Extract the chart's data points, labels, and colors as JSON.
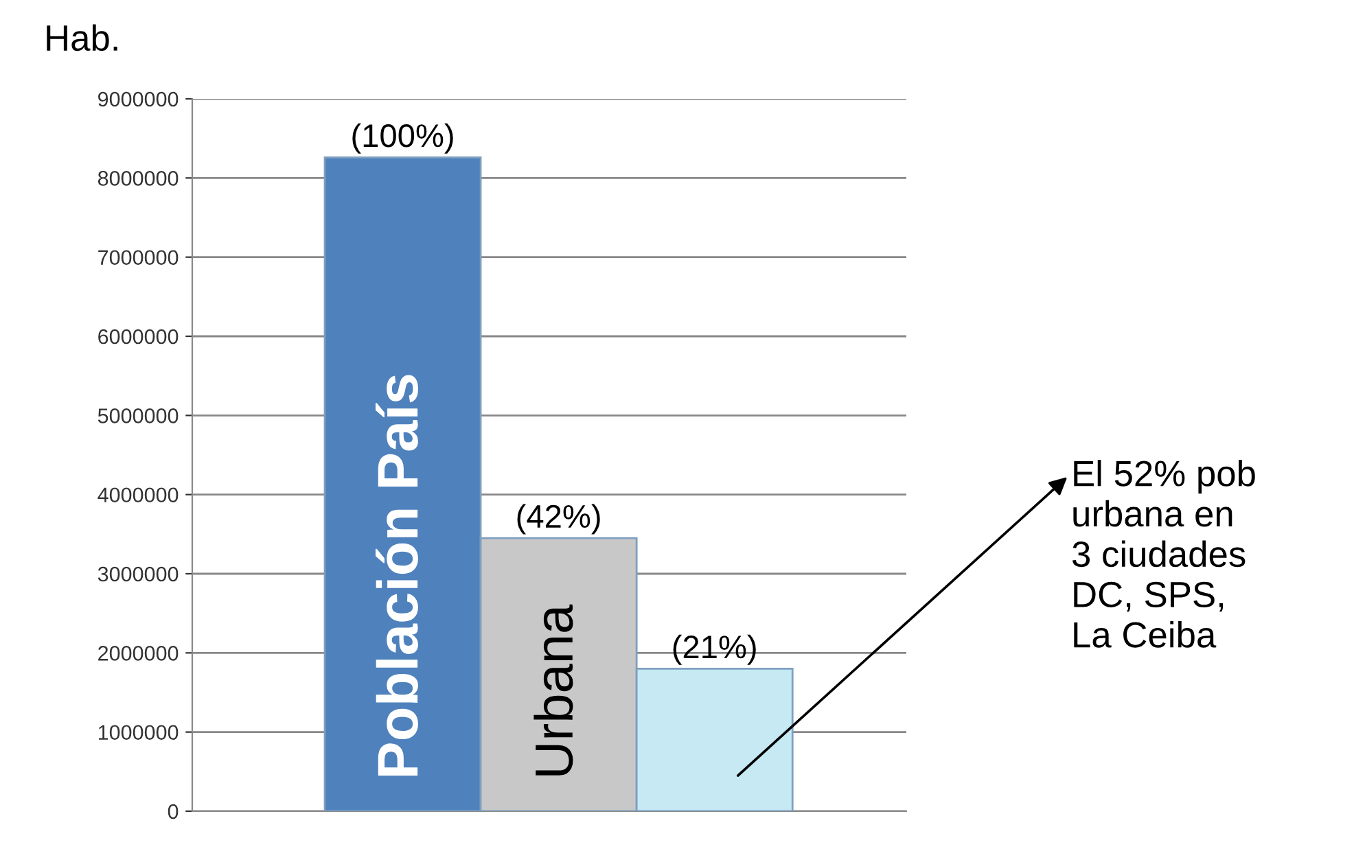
{
  "chart_data": {
    "type": "bar",
    "ylabel": "Hab.",
    "categories": [
      "Población País",
      "Urbana",
      null
    ],
    "values": [
      8260000,
      3450000,
      1800000
    ],
    "colors": [
      "#4f81bd",
      "#c8c8c8",
      "#c6e9f4"
    ],
    "ylim": [
      0,
      9000000
    ],
    "yticks": [
      0,
      1000000,
      2000000,
      3000000,
      4000000,
      5000000,
      6000000,
      7000000,
      8000000,
      9000000
    ],
    "grid": "y",
    "annotations": [
      "(100%)",
      "(42%)",
      "(21%)",
      "El 52% pob\nurbana en\n3 ciudades\nDC, SPS,\nLa Ceiba"
    ]
  }
}
